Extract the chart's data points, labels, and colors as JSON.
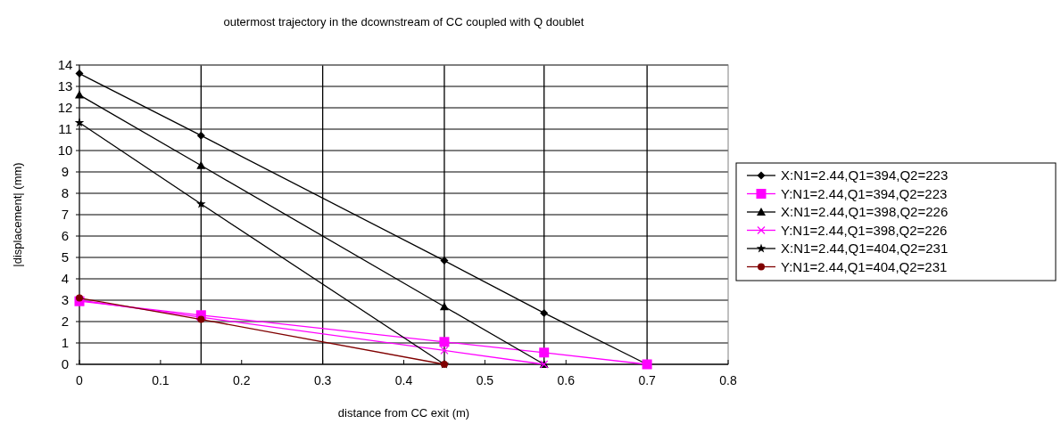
{
  "chart_data": {
    "type": "line",
    "title": "outermost trajectory in the dcownstream of CC coupled with Q doublet",
    "xlabel": "distance from CC exit (m)",
    "ylabel": "|displacement| (mm)",
    "xlim": [
      0,
      0.8
    ],
    "xticks": [
      0,
      0.1,
      0.2,
      0.3,
      0.4,
      0.5,
      0.6,
      0.7,
      0.8
    ],
    "ylim": [
      0,
      14
    ],
    "yticks": [
      0,
      1,
      2,
      3,
      4,
      5,
      6,
      7,
      8,
      9,
      10,
      11,
      12,
      13,
      14
    ],
    "grid": "y",
    "legend": "right",
    "ref_lines": [
      {
        "axis": "x",
        "value": 0.15,
        "color": "#000000"
      },
      {
        "axis": "x",
        "value": 0.3,
        "color": "#000000"
      },
      {
        "axis": "x",
        "value": 0.45,
        "color": "#000000"
      },
      {
        "axis": "x",
        "value": 0.573,
        "color": "#000000"
      },
      {
        "axis": "x",
        "value": 0.7,
        "color": "#000000"
      }
    ],
    "series": [
      {
        "name": "X:N1=2.44,Q1=394,Q2=223",
        "color": "#000000",
        "marker": "diamond",
        "x": [
          0,
          0.15,
          0.45,
          0.573,
          0.7
        ],
        "values": [
          13.6,
          10.7,
          4.85,
          2.4,
          0
        ]
      },
      {
        "name": "Y:N1=2.44,Q1=394,Q2=223",
        "color": "#ff00ff",
        "marker": "square",
        "x": [
          0,
          0.15,
          0.45,
          0.573,
          0.7
        ],
        "values": [
          2.95,
          2.3,
          1.05,
          0.55,
          0
        ]
      },
      {
        "name": "X:N1=2.44,Q1=398,Q2=226",
        "color": "#000000",
        "marker": "triangle",
        "x": [
          0,
          0.15,
          0.45,
          0.573
        ],
        "values": [
          12.6,
          9.3,
          2.7,
          0
        ]
      },
      {
        "name": "Y:N1=2.44,Q1=398,Q2=226",
        "color": "#ff00ff",
        "marker": "cross",
        "x": [
          0,
          0.15,
          0.45,
          0.573
        ],
        "values": [
          3.0,
          2.2,
          0.65,
          0
        ]
      },
      {
        "name": "X:N1=2.44,Q1=404,Q2=231",
        "color": "#000000",
        "marker": "star",
        "x": [
          0,
          0.15,
          0.45
        ],
        "values": [
          11.3,
          7.5,
          0
        ]
      },
      {
        "name": "Y:N1=2.44,Q1=404,Q2=231",
        "color": "#800000",
        "marker": "circle",
        "x": [
          0,
          0.15,
          0.45
        ],
        "values": [
          3.1,
          2.1,
          0
        ]
      }
    ]
  }
}
